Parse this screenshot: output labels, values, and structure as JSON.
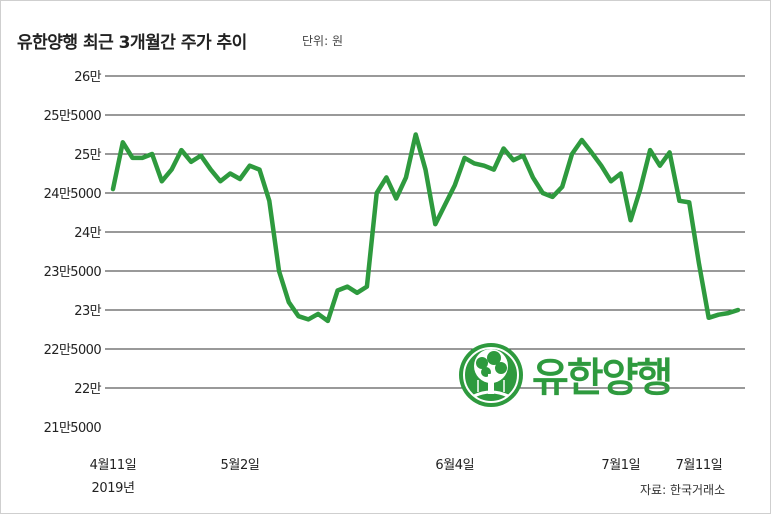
{
  "header": {
    "title": "유한양행 최근 3개월간 주가 추이",
    "unit": "단위: 원"
  },
  "source": "자료: 한국거래소",
  "logo": {
    "text": "유한양행"
  },
  "colors": {
    "line": "#2e9a3e",
    "grid": "#333333",
    "logo": "#2e9a3e"
  },
  "chart_data": {
    "type": "line",
    "title": "유한양행 최근 3개월간 주가 추이",
    "unit": "단위: 원",
    "ylim": [
      215000,
      260000
    ],
    "y_ticks": [
      {
        "value": 260000,
        "label": "26만"
      },
      {
        "value": 255000,
        "label": "25만5000"
      },
      {
        "value": 250000,
        "label": "25만"
      },
      {
        "value": 245000,
        "label": "24만5000"
      },
      {
        "value": 240000,
        "label": "24만"
      },
      {
        "value": 235000,
        "label": "23만5000"
      },
      {
        "value": 230000,
        "label": "23만"
      },
      {
        "value": 225000,
        "label": "22만5000"
      },
      {
        "value": 220000,
        "label": "22만"
      },
      {
        "value": 215000,
        "label": "21만5000"
      }
    ],
    "x_ticks": [
      {
        "index": 0,
        "label": "4월11일",
        "sublabel": "2019년"
      },
      {
        "index": 13,
        "label": "5월2일",
        "sublabel": ""
      },
      {
        "index": 35,
        "label": "6월4일",
        "sublabel": ""
      },
      {
        "index": 52,
        "label": "7월1일",
        "sublabel": ""
      },
      {
        "index": 60,
        "label": "7월11일",
        "sublabel": ""
      }
    ],
    "grid": true,
    "series": [
      {
        "values": [
          245500,
          251500,
          249500,
          249500,
          250000,
          246500,
          248000,
          250500,
          249000,
          249800,
          248000,
          246500,
          247500,
          246800,
          248500,
          248000,
          244000,
          235000,
          231000,
          229200,
          228800,
          229500,
          228600,
          232500,
          233000,
          232200,
          233000,
          245000,
          247000,
          244300,
          247000,
          252500,
          248000,
          241000,
          243500,
          246000,
          249500,
          248800,
          248500,
          248000,
          250700,
          249200,
          249800,
          247000,
          245000,
          244500,
          245800,
          250000,
          251800,
          250200,
          248500,
          246500,
          247500,
          241500,
          245500,
          250500,
          248500,
          250200,
          244000,
          243800,
          236000,
          229000,
          229400,
          229600,
          230000
        ]
      }
    ]
  }
}
